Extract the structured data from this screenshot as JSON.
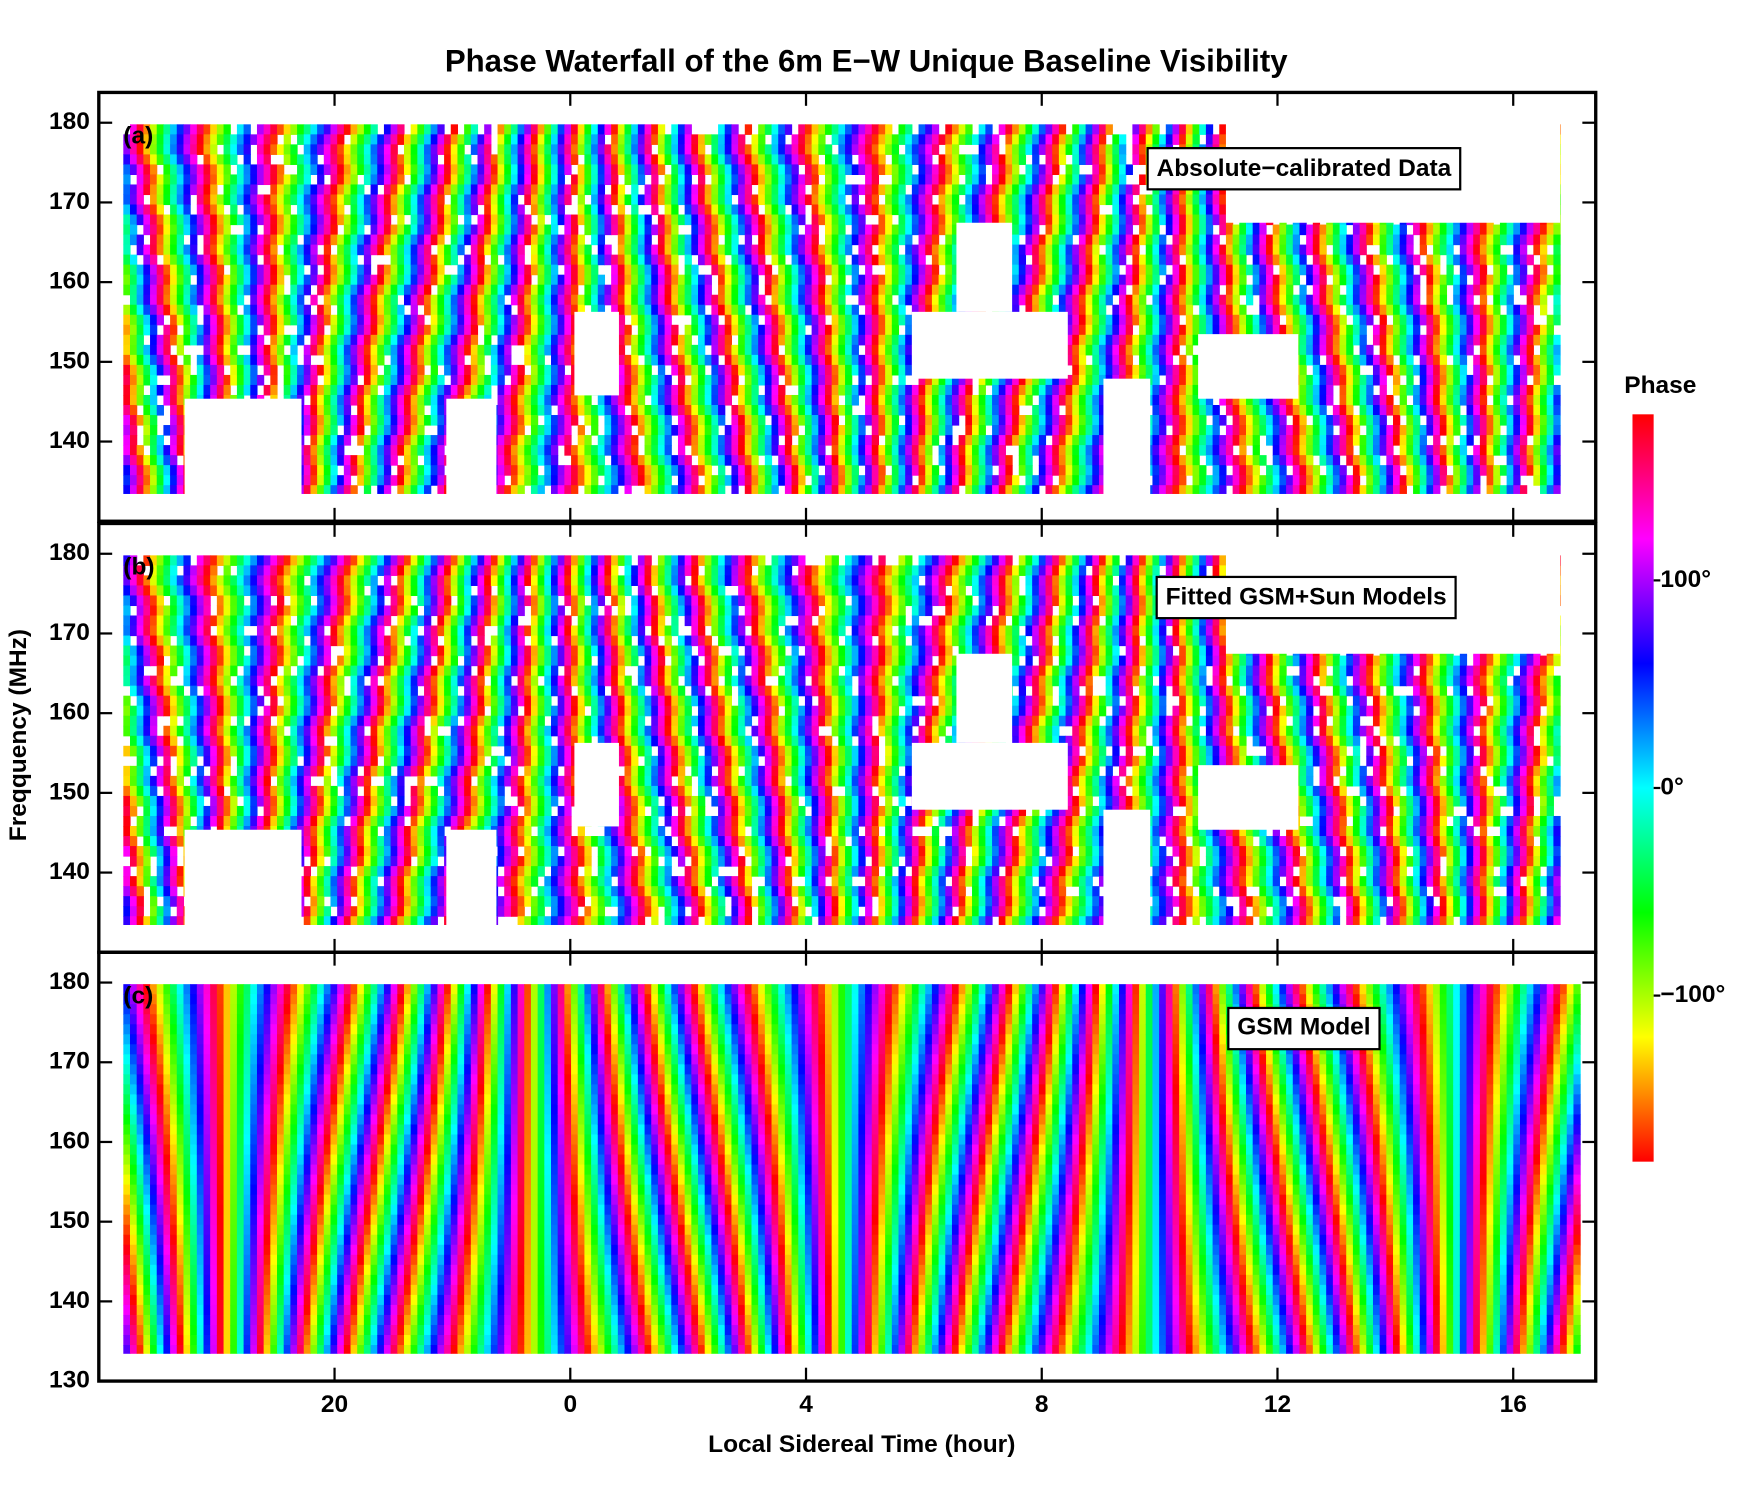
{
  "chart_data": {
    "type": "heatmap",
    "title": "Phase Waterfall of the 6m E−W Unique Baseline Visibility",
    "xlabel": "Local Sidereal Time (hour)",
    "ylabel": "Freqquency (MHz)",
    "xlim": [
      -8,
      17.4
    ],
    "xticks": [
      {
        "value": -4,
        "label": "20"
      },
      0,
      4,
      8,
      12,
      16
    ],
    "ylim": [
      130,
      183.8
    ],
    "panels": [
      {
        "label": "(a)",
        "annotation": "Absolute−calibrated Data",
        "yticks": [
          140,
          150,
          160,
          170,
          180
        ]
      },
      {
        "label": "(b)",
        "annotation": "Fitted GSM+Sun Models",
        "yticks": [
          140,
          150,
          160,
          170,
          180
        ]
      },
      {
        "label": "(c)",
        "annotation": "GSM Model",
        "yticks": [
          130,
          140,
          150,
          160,
          170,
          180
        ]
      }
    ],
    "colorbar": {
      "label": "Phase",
      "lim": [
        -180,
        180
      ],
      "ticks": [
        {
          "value": 100,
          "label": "100°"
        },
        {
          "value": 0,
          "label": "0°"
        },
        {
          "value": -100,
          "label": "−100°"
        }
      ],
      "colors": [
        "#ff0000",
        "#ffff00",
        "#00ff00",
        "#00ffff",
        "#0000ff",
        "#ff00ff",
        "#ff0000"
      ]
    }
  }
}
